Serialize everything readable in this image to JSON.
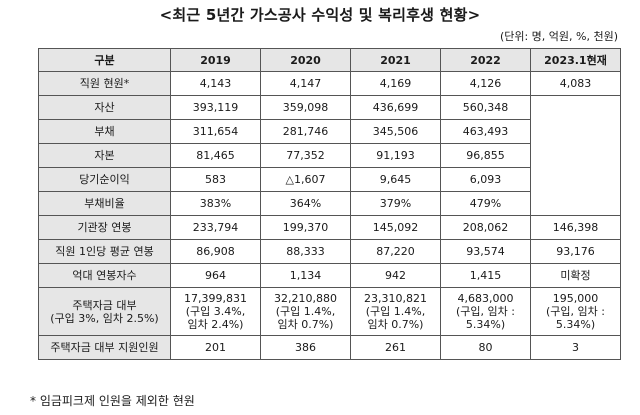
{
  "title": "<최근 5년간 가스공사 수익성 및 복리후생 현황>",
  "unit": "(단위: 명, 억원, %, 천원)",
  "table": {
    "headers": [
      "구분",
      "2019",
      "2020",
      "2021",
      "2022",
      "2023.1현재"
    ],
    "rows": [
      {
        "label": [
          "직원 현원*"
        ],
        "cells": [
          [
            "4,143"
          ],
          [
            "4,147"
          ],
          [
            "4,169"
          ],
          [
            "4,126"
          ],
          [
            "4,083"
          ]
        ]
      },
      {
        "label": [
          "자산"
        ],
        "cells": [
          [
            "393,119"
          ],
          [
            "359,098"
          ],
          [
            "436,699"
          ],
          [
            "560,348"
          ]
        ]
      },
      {
        "label": [
          "부채"
        ],
        "cells": [
          [
            "311,654"
          ],
          [
            "281,746"
          ],
          [
            "345,506"
          ],
          [
            "463,493"
          ]
        ]
      },
      {
        "label": [
          "자본"
        ],
        "cells": [
          [
            "81,465"
          ],
          [
            "77,352"
          ],
          [
            "91,193"
          ],
          [
            "96,855"
          ]
        ]
      },
      {
        "label": [
          "당기순이익"
        ],
        "cells": [
          [
            "583"
          ],
          [
            "△1,607"
          ],
          [
            "9,645"
          ],
          [
            "6,093"
          ]
        ]
      },
      {
        "label": [
          "부채비율"
        ],
        "cells": [
          [
            "383%"
          ],
          [
            "364%"
          ],
          [
            "379%"
          ],
          [
            "479%"
          ]
        ]
      },
      {
        "label": [
          "기관장 연봉"
        ],
        "cells": [
          [
            "233,794"
          ],
          [
            "199,370"
          ],
          [
            "145,092"
          ],
          [
            "208,062"
          ],
          [
            "146,398"
          ]
        ]
      },
      {
        "label": [
          "직원 1인당 평균 연봉"
        ],
        "cells": [
          [
            "86,908"
          ],
          [
            "88,333"
          ],
          [
            "87,220"
          ],
          [
            "93,574"
          ],
          [
            "93,176"
          ]
        ]
      },
      {
        "label": [
          "억대 연봉자수"
        ],
        "cells": [
          [
            "964"
          ],
          [
            "1,134"
          ],
          [
            "942"
          ],
          [
            "1,415"
          ],
          [
            "미확정"
          ]
        ]
      },
      {
        "label": [
          "주택자금 대부",
          "(구입 3%, 임차 2.5%)"
        ],
        "tall": true,
        "cells": [
          [
            "17,399,831",
            "(구입 3.4%,",
            "임차 2.4%)"
          ],
          [
            "32,210,880",
            "(구입 1.4%,",
            "임차 0.7%)"
          ],
          [
            "23,310,821",
            "(구입 1.4%,",
            "임차 0.7%)"
          ],
          [
            "4,683,000",
            "(구입, 임차 :",
            "5.34%)"
          ],
          [
            "195,000",
            "(구입, 임차 :",
            "5.34%)"
          ]
        ]
      },
      {
        "label": [
          "주택자금 대부 지원인원"
        ],
        "cells": [
          [
            "201"
          ],
          [
            "386"
          ],
          [
            "261"
          ],
          [
            "80"
          ],
          [
            "3"
          ]
        ]
      }
    ]
  },
  "footnote": "* 임금피크제 인원을 제외한 현원"
}
